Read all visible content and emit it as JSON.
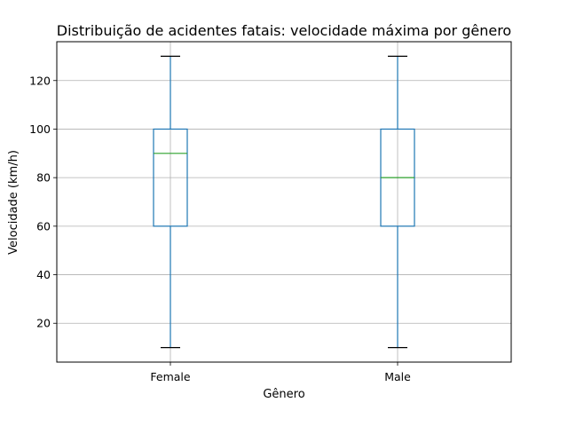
{
  "chart_data": {
    "type": "boxplot",
    "title": "Distribuição de acidentes fatais: velocidade máxima por gênero",
    "xlabel": "Gênero",
    "ylabel": "Velocidade (km/h)",
    "categories": [
      "Female",
      "Male"
    ],
    "boxes": [
      {
        "category": "Female",
        "whisker_low": 10,
        "q1": 60,
        "median": 90,
        "q3": 100,
        "whisker_high": 130
      },
      {
        "category": "Male",
        "whisker_low": 10,
        "q1": 60,
        "median": 80,
        "q3": 100,
        "whisker_high": 130
      }
    ],
    "ylim": [
      4,
      136
    ],
    "yticks": [
      20,
      40,
      60,
      80,
      100,
      120
    ],
    "grid": true,
    "colors": {
      "box": "#1f77b4",
      "median": "#2ca02c",
      "cap": "#000000",
      "grid": "#b0b0b0"
    }
  }
}
